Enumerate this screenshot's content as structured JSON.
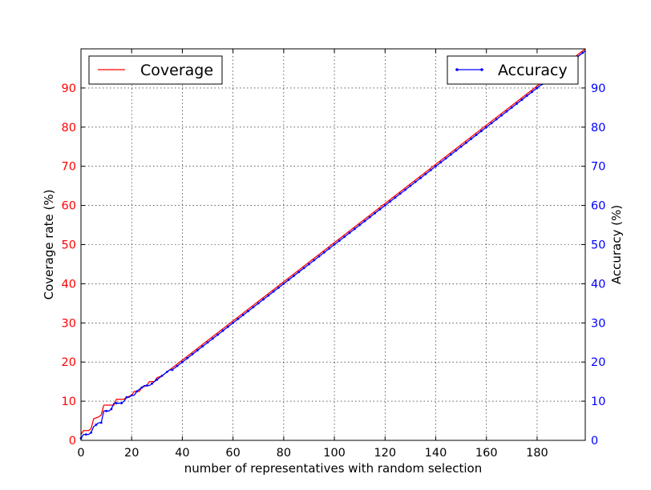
{
  "chart_data": {
    "type": "line",
    "title": "",
    "xlabel": "number of representatives with random selection",
    "ylabel_left": "Coverage rate (%)",
    "ylabel_right": "Accuracy (%)",
    "xlim": [
      0,
      199
    ],
    "ylim": [
      0,
      100
    ],
    "x_ticks": [
      0,
      20,
      40,
      60,
      80,
      100,
      120,
      140,
      160,
      180
    ],
    "y_ticks": [
      0,
      10,
      20,
      30,
      40,
      50,
      60,
      70,
      80,
      90
    ],
    "grid": true,
    "left_tick_color": "#ff0000",
    "right_tick_color": "#0000ff",
    "series": [
      {
        "name": "Coverage",
        "axis": "left",
        "color": "#ff0000",
        "marker": "none",
        "legend_position": "top-left",
        "x": [
          0,
          1,
          3,
          4,
          5,
          7,
          8,
          9,
          10,
          12,
          13,
          14,
          17,
          18,
          20,
          21,
          23,
          24,
          26,
          27,
          29,
          30,
          32,
          33,
          35,
          36,
          199
        ],
        "y": [
          1.5,
          2.5,
          2.5,
          3,
          5.5,
          6,
          6.5,
          9,
          9,
          9,
          9,
          10.5,
          10.5,
          11,
          11.5,
          12.5,
          12.5,
          13.5,
          14,
          15,
          15,
          16,
          16.5,
          17,
          18,
          18.5,
          100
        ]
      },
      {
        "name": "Accuracy",
        "axis": "right",
        "color": "#0000ff",
        "marker": "dot",
        "legend_position": "top-right",
        "x": [
          0,
          1,
          2,
          3,
          4,
          5,
          6,
          7,
          8,
          9,
          10,
          11,
          12,
          13,
          14,
          15,
          16,
          17,
          18,
          19,
          20,
          21,
          22,
          23,
          24,
          25,
          26,
          27,
          28,
          29,
          30,
          31,
          32,
          33,
          34,
          35,
          36,
          37,
          38,
          199
        ],
        "y": [
          0.5,
          1.5,
          1.5,
          1.5,
          2,
          3.5,
          4,
          4.5,
          4.5,
          7.5,
          7.5,
          7.5,
          8,
          9.5,
          9.5,
          9.5,
          9.5,
          10,
          11,
          11,
          11.5,
          11.5,
          12.5,
          13,
          13.5,
          14,
          14,
          14,
          14.5,
          15,
          15.5,
          16,
          16.5,
          17,
          17.5,
          18,
          18,
          18.5,
          19,
          99.5
        ]
      }
    ]
  }
}
